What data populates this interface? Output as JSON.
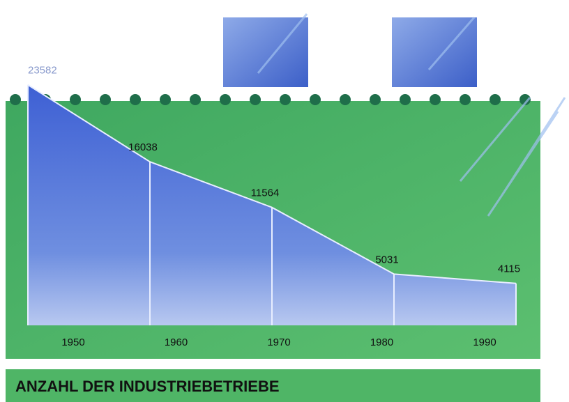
{
  "chart_data": {
    "type": "area",
    "title": "ANZAHL DER INDUSTRIEBETRIEBE",
    "categories": [
      "1950",
      "1960",
      "1970",
      "1980",
      "1990"
    ],
    "values": [
      23582,
      16038,
      11564,
      5031,
      4115
    ],
    "color": "#4a6fd8",
    "ylim": [
      0,
      25000
    ]
  }
}
